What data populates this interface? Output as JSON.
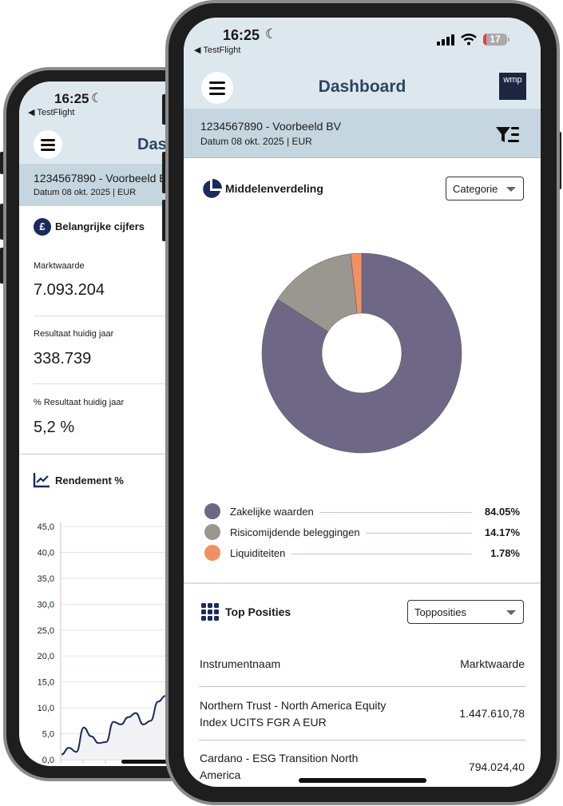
{
  "status": {
    "time": "16:25",
    "back_app": "TestFlight",
    "battery": "17"
  },
  "colors": {
    "header": "#dde7ee",
    "band": "#c5d6e0",
    "navy": "#1b2a5c",
    "title": "#2b4660"
  },
  "back": {
    "title": "Dashboard",
    "account": "1234567890 - Voorbeeld BV",
    "date": "Datum 08 okt. 2025 | EUR",
    "key_title": "Belangrijke cijfers",
    "figures": [
      {
        "label": "Marktwaarde",
        "value": "7.093.204"
      },
      {
        "label": "Resultaat huidig jaar",
        "value": "338.739"
      },
      {
        "label": "% Resultaat huidig jaar",
        "value": "5,2 %"
      }
    ],
    "rendement_title": "Rendement %"
  },
  "front": {
    "title": "Dashboard",
    "logo": "wmp",
    "account": "1234567890 - Voorbeeld BV",
    "date": "Datum 08 okt. 2025 | EUR",
    "alloc_title": "Middelenverdeling",
    "alloc_select": "Categorie",
    "top_title": "Top Posities",
    "top_select": "Topposities",
    "table": {
      "headers": [
        "Instrumentnaam",
        "Marktwaarde"
      ],
      "rows": [
        {
          "name_1": "Northern Trust - North America Equity",
          "name_2": "Index UCITS FGR A EUR",
          "value": "1.447.610,78"
        },
        {
          "name_1": "Cardano - ESG Transition North",
          "name_2": "America",
          "value": "794.024,40"
        }
      ]
    }
  },
  "chart_data": [
    {
      "type": "pie",
      "donut": true,
      "labels": [
        "Zakelijke waarden",
        "Risicomijdende beleggingen",
        "Liquiditeiten"
      ],
      "values": [
        84.05,
        14.17,
        1.78
      ],
      "value_labels": [
        "84.05%",
        "14.17%",
        "1.78%"
      ],
      "colors": [
        "#6e6886",
        "#9a9690",
        "#f29062"
      ],
      "legend": "bottom"
    },
    {
      "type": "line",
      "title": "Rendement %",
      "ylim": [
        0,
        45
      ],
      "yticks": [
        "0,0",
        "5,0",
        "10,0",
        "15,0",
        "20,0",
        "25,0",
        "30,0",
        "35,0",
        "40,0",
        "45,0"
      ],
      "values": [
        1.0,
        2.3,
        1.5,
        6.2,
        4.5,
        3.2,
        3.4,
        7.3,
        6.8,
        8.2,
        9.0,
        6.8,
        7.5,
        11.2,
        12.3
      ],
      "grid": true,
      "color": "#1b2a5c"
    }
  ]
}
